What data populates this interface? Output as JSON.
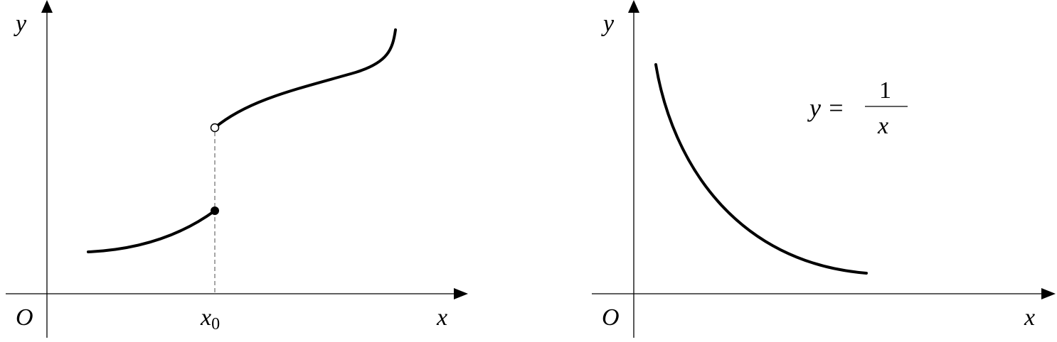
{
  "left_graph": {
    "origin_label": "O",
    "x_axis_label": "x",
    "y_axis_label": "y",
    "x0_label_base": "x",
    "x0_label_sub": "0",
    "jump_discontinuity": {
      "lower_piece_endpoint": "closed",
      "upper_piece_endpoint": "open"
    },
    "stroke_color": "#000000",
    "guide_color": "#777777"
  },
  "right_graph": {
    "origin_label": "O",
    "x_axis_label": "x",
    "y_axis_label": "y",
    "equation_lhs": "y =",
    "equation_numerator": "1",
    "equation_denominator": "x",
    "stroke_color": "#000000"
  }
}
